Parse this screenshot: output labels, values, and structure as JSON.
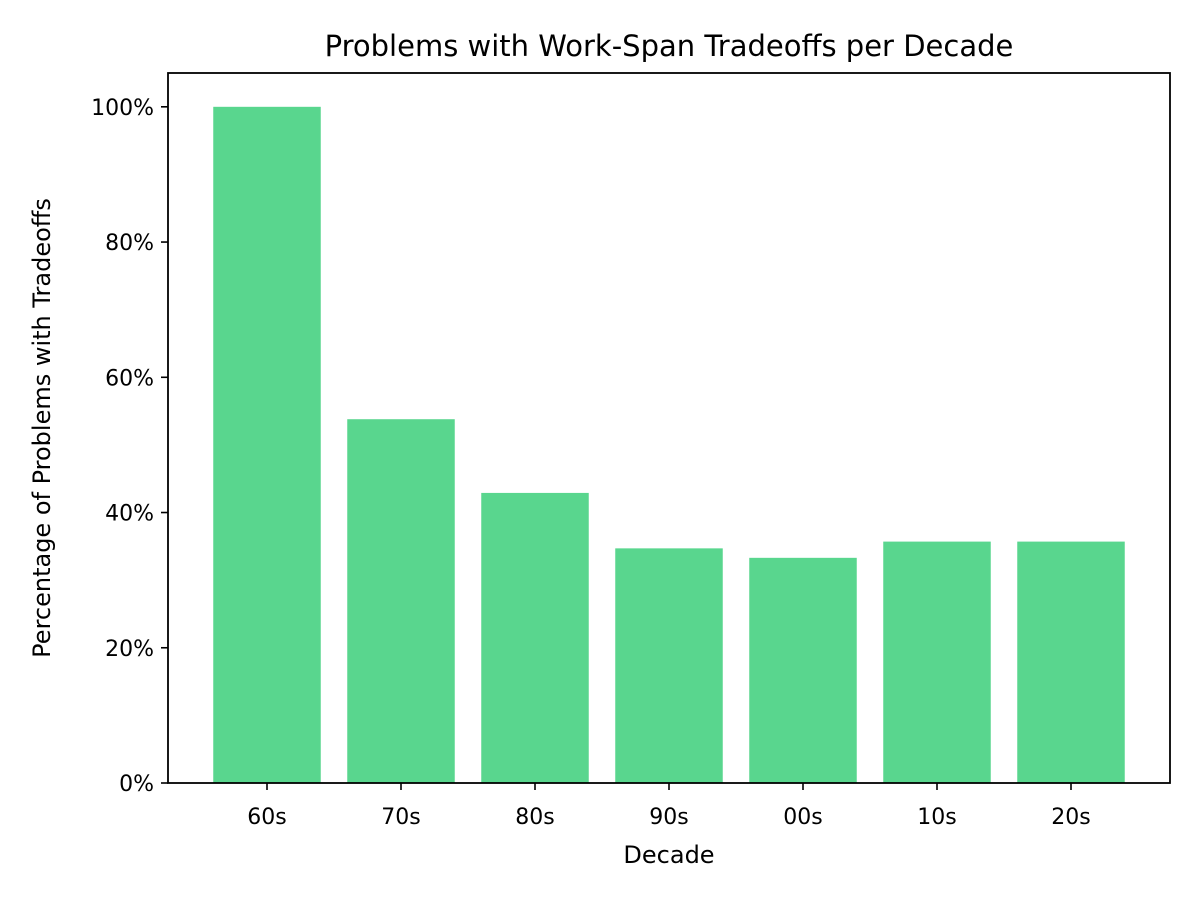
{
  "chart_data": {
    "type": "bar",
    "title": "Problems with Work-Span Tradeoffs per Decade",
    "xlabel": "Decade",
    "ylabel": "Percentage of Problems with Tradeoffs",
    "categories": [
      "60s",
      "70s",
      "80s",
      "90s",
      "00s",
      "10s",
      "20s"
    ],
    "values": [
      100,
      53.8,
      42.9,
      34.7,
      33.3,
      35.7,
      35.7
    ],
    "ylim": [
      0,
      105
    ],
    "yticks": [
      0,
      20,
      40,
      60,
      80,
      100
    ],
    "ytick_labels": [
      "0%",
      "20%",
      "40%",
      "60%",
      "80%",
      "100%"
    ],
    "grid": false,
    "bar_color": "#59d68e"
  }
}
